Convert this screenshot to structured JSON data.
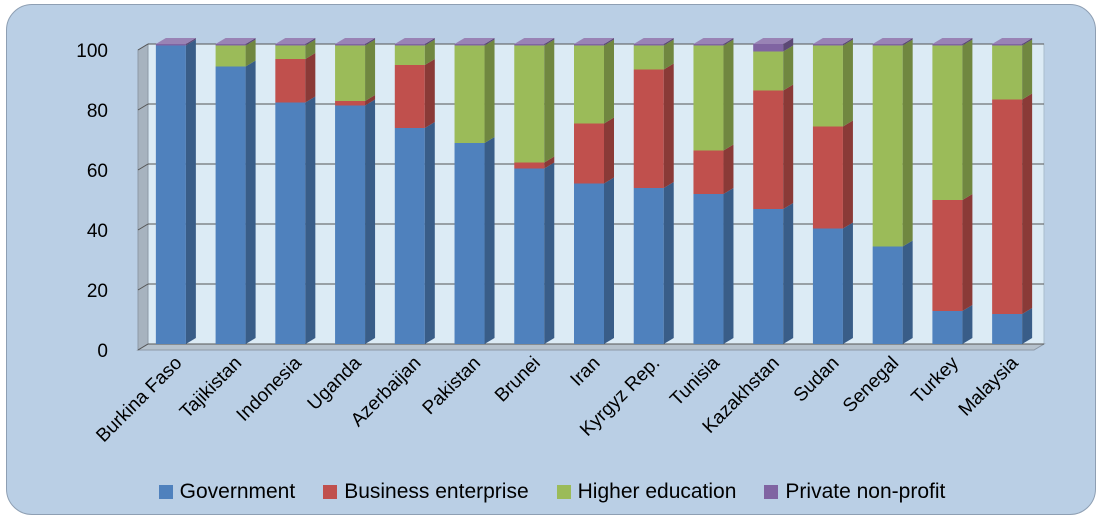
{
  "chart_data": {
    "type": "bar",
    "stacked": true,
    "three_d": true,
    "title": "",
    "xlabel": "",
    "ylabel": "",
    "ylim": [
      0,
      100
    ],
    "yticks": [
      0,
      20,
      40,
      60,
      80,
      100
    ],
    "grid": true,
    "legend_position": "bottom",
    "categories": [
      "Burkina Faso",
      "Tajikistan",
      "Indonesia",
      "Uganda",
      "Azerbaijan",
      "Pakistan",
      "Brunei",
      "Iran",
      "Kyrgyz Rep.",
      "Tunisia",
      "Kazakhstan",
      "Sudan",
      "Senegal",
      "Turkey",
      "Malaysia"
    ],
    "series": [
      {
        "name": "Government",
        "color": "#4f81bd",
        "values": [
          99.5,
          92.5,
          80.5,
          79.5,
          72,
          67,
          58.5,
          53.5,
          52,
          50,
          45,
          38.5,
          32.5,
          11,
          10
        ]
      },
      {
        "name": "Business enterprise",
        "color": "#c0504d",
        "values": [
          0,
          0,
          14.5,
          1.5,
          21,
          0,
          2,
          20,
          39.5,
          14.5,
          39.5,
          34,
          0,
          37,
          71.5
        ]
      },
      {
        "name": "Higher education",
        "color": "#9bbb59",
        "values": [
          0,
          7,
          4.5,
          18.5,
          6.5,
          32.5,
          39,
          26,
          8,
          35,
          13,
          27,
          67,
          51.5,
          18
        ]
      },
      {
        "name": "Private non-profit",
        "color": "#8064a2",
        "values": [
          0.5,
          0.5,
          0.5,
          0.5,
          0.5,
          0.5,
          0.5,
          0.5,
          0.5,
          0.5,
          2.5,
          0.5,
          0.5,
          0.5,
          0.5
        ]
      }
    ]
  },
  "legend": {
    "items": [
      {
        "label": "Government",
        "color": "#4f81bd"
      },
      {
        "label": "Business enterprise",
        "color": "#c0504d"
      },
      {
        "label": "Higher education",
        "color": "#9bbb59"
      },
      {
        "label": "Private non-profit",
        "color": "#8064a2"
      }
    ]
  }
}
